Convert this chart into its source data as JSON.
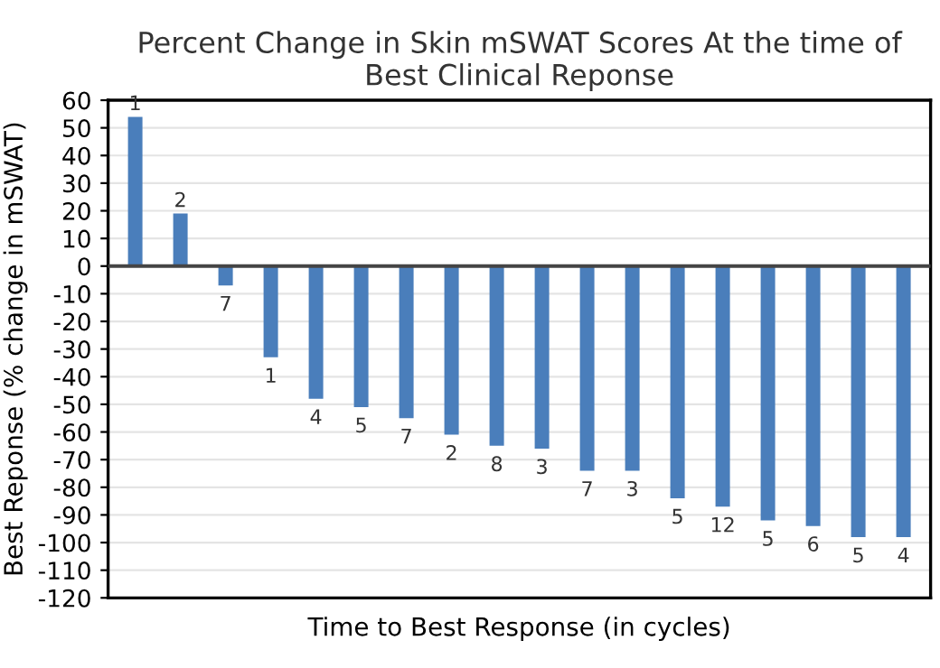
{
  "chart_data": {
    "type": "bar",
    "title": "Percent Change in Skin mSWAT Scores At the time of\nBest Clinical Reponse",
    "xlabel": "Time to Best Response (in cycles)",
    "ylabel": "Best Reponse (% change in mSWAT)",
    "categories": [
      null,
      null,
      null,
      null,
      null,
      null,
      null,
      null,
      null,
      null,
      null,
      null,
      null,
      null,
      null,
      null,
      null,
      null
    ],
    "values": [
      54,
      19,
      -7,
      -33,
      -48,
      -51,
      -55,
      -61,
      -65,
      -66,
      -74,
      -74,
      -84,
      -87,
      -92,
      -94,
      -98,
      -98
    ],
    "annotations": [
      {
        "text": "1",
        "y": 54
      },
      {
        "text": "2",
        "y": 19
      },
      {
        "text": "7",
        "y": -7
      },
      {
        "text": "1",
        "y": -33
      },
      {
        "text": "4",
        "y": -48
      },
      {
        "text": "5",
        "y": -51
      },
      {
        "text": "7",
        "y": -55
      },
      {
        "text": "2",
        "y": -61
      },
      {
        "text": "8",
        "y": -65
      },
      {
        "text": "3",
        "y": -66
      },
      {
        "text": "7",
        "y": -74
      },
      {
        "text": "3",
        "y": -74
      },
      {
        "text": "5",
        "y": -84
      },
      {
        "text": "12",
        "y": -87
      },
      {
        "text": "5",
        "y": -92
      },
      {
        "text": "6",
        "y": -94
      },
      {
        "text": "5",
        "y": -98
      },
      {
        "text": "4",
        "y": -98
      }
    ],
    "color": "#4a7ebb",
    "ylim": [
      -120,
      60
    ],
    "yticks": [
      -120,
      -110,
      -100,
      -90,
      -80,
      -70,
      -60,
      -50,
      -40,
      -30,
      -20,
      -10,
      0,
      10,
      20,
      30,
      40,
      50,
      60
    ],
    "grid": "y"
  }
}
